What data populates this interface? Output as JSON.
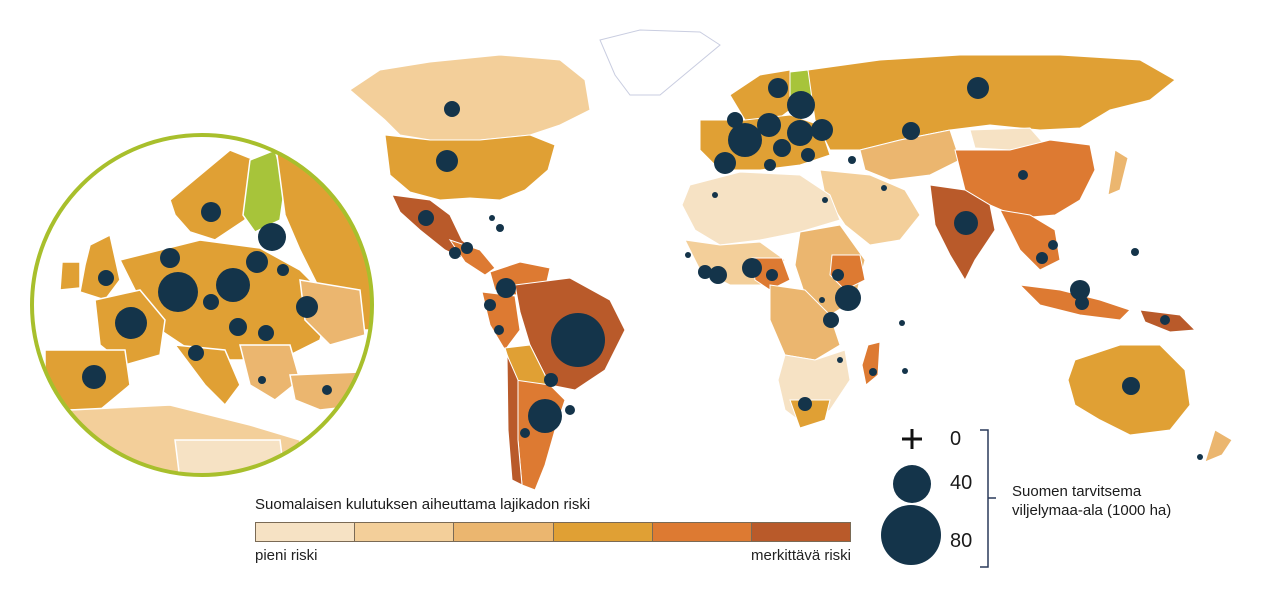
{
  "colors": {
    "risk_scale": [
      "#f6e2c4",
      "#f3cf9a",
      "#ebb66f",
      "#e0a034",
      "#dd7a32",
      "#b95a2a"
    ],
    "finland": "#a7c43a",
    "bubble": "#14344a",
    "inset_ring": "#a8bf2c",
    "ocean": "#ffffff",
    "greenland": "#ffffff"
  },
  "risk_legend": {
    "title": "Suomalaisen kulutuksen aiheuttama lajikadon riski",
    "low_label": "pieni riski",
    "high_label": "merkittävä riski"
  },
  "size_legend": {
    "zero_marker": "+",
    "values": [
      "0",
      "40",
      "80"
    ],
    "title_line1": "Suomen tarvitsema",
    "title_line2": "viljelymaa-ala (1000 ha)"
  }
}
